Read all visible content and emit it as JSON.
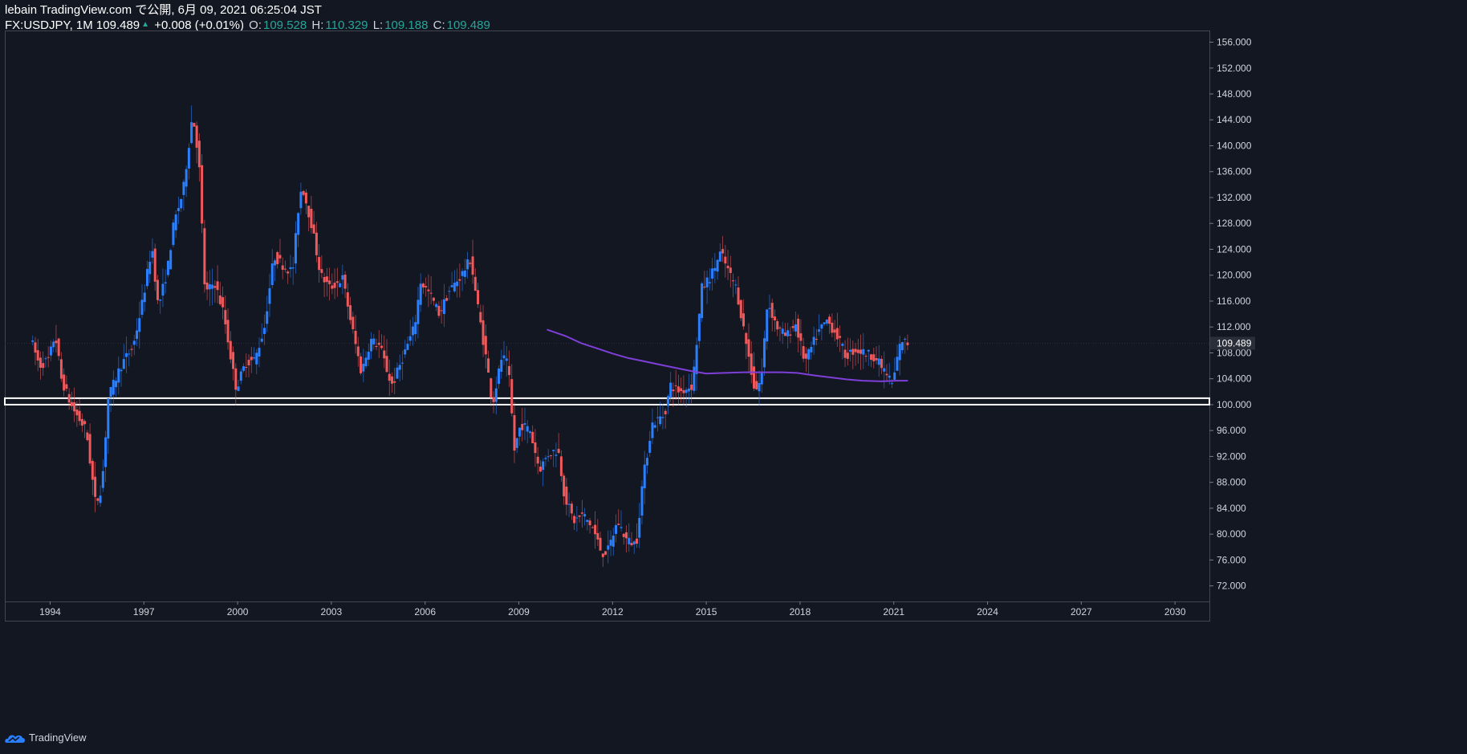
{
  "header": {
    "publish_line": "lebain TradingView.com で公開, 6月 09, 2021 06:25:04 JST",
    "symbol": "FX:USDJPY, 1M 109.489",
    "change_arrow": "▲",
    "change": "+0.008 (+0.01%)",
    "open_label": "O:",
    "open": "109.528",
    "high_label": "H:",
    "high": "110.329",
    "low_label": "L:",
    "low": "109.188",
    "close_label": "C:",
    "close": "109.489"
  },
  "footer": {
    "brand": "TradingView"
  },
  "colors": {
    "background": "#131722",
    "up": "#2a7fff",
    "down": "#f0595c",
    "ma": "#7e3fd8",
    "level": "#ffffff",
    "grid": "#1c2030",
    "price_tag": "#2a2e39"
  },
  "chart_data": {
    "type": "candlestick",
    "y_axis_labels": [
      "156.000",
      "152.000",
      "148.000",
      "144.000",
      "140.000",
      "136.000",
      "132.000",
      "128.000",
      "124.000",
      "120.000",
      "116.000",
      "112.000",
      "108.000",
      "104.000",
      "100.000",
      "96.000",
      "92.000",
      "88.000",
      "84.000",
      "80.000",
      "76.000",
      "72.000"
    ],
    "ylim": [
      69.6,
      157.8
    ],
    "x_axis_labels": [
      "1994",
      "1997",
      "2000",
      "2003",
      "2006",
      "2009",
      "2012",
      "2015",
      "2018",
      "2021",
      "2024",
      "2027",
      "2030"
    ],
    "xlim": [
      1992.55,
      2031.1
    ],
    "last_price": "109.489",
    "last_price_value": 109.489,
    "support_band": [
      100.0,
      101.0
    ],
    "series_path": [
      [
        1993.4,
        110.5
      ],
      [
        1993.7,
        106
      ],
      [
        1994.0,
        107
      ],
      [
        1994.2,
        111
      ],
      [
        1994.4,
        104
      ],
      [
        1994.7,
        100
      ],
      [
        1995.0,
        97.5
      ],
      [
        1995.2,
        96
      ],
      [
        1995.3,
        92
      ],
      [
        1995.5,
        84.5
      ],
      [
        1995.7,
        87.5
      ],
      [
        1995.9,
        101
      ],
      [
        1996.3,
        106
      ],
      [
        1996.7,
        109
      ],
      [
        1997.0,
        116
      ],
      [
        1997.3,
        124.5
      ],
      [
        1997.5,
        115
      ],
      [
        1997.8,
        121
      ],
      [
        1998.0,
        128
      ],
      [
        1998.3,
        133
      ],
      [
        1998.6,
        145
      ],
      [
        1998.8,
        138
      ],
      [
        1999.0,
        117
      ],
      [
        1999.3,
        119
      ],
      [
        1999.6,
        114
      ],
      [
        1999.9,
        105
      ],
      [
        2000.0,
        102.5
      ],
      [
        2000.3,
        106.5
      ],
      [
        2000.6,
        107
      ],
      [
        2000.9,
        112
      ],
      [
        2001.2,
        123
      ],
      [
        2001.5,
        121.5
      ],
      [
        2001.8,
        120.5
      ],
      [
        2002.0,
        131
      ],
      [
        2002.1,
        134
      ],
      [
        2002.4,
        128
      ],
      [
        2002.7,
        120
      ],
      [
        2003.0,
        118
      ],
      [
        2003.4,
        119.5
      ],
      [
        2003.7,
        112
      ],
      [
        2004.0,
        105
      ],
      [
        2004.3,
        110
      ],
      [
        2004.6,
        109
      ],
      [
        2004.9,
        104
      ],
      [
        2005.0,
        103
      ],
      [
        2005.3,
        107
      ],
      [
        2005.7,
        112
      ],
      [
        2005.9,
        119
      ],
      [
        2006.2,
        117
      ],
      [
        2006.5,
        114
      ],
      [
        2006.8,
        117.5
      ],
      [
        2007.2,
        120
      ],
      [
        2007.5,
        122.5
      ],
      [
        2007.7,
        116
      ],
      [
        2008.0,
        107
      ],
      [
        2008.2,
        100
      ],
      [
        2008.5,
        107.5
      ],
      [
        2008.7,
        106
      ],
      [
        2008.9,
        93
      ],
      [
        2009.1,
        97
      ],
      [
        2009.4,
        96
      ],
      [
        2009.7,
        90
      ],
      [
        2010.0,
        92.5
      ],
      [
        2010.3,
        93
      ],
      [
        2010.5,
        86
      ],
      [
        2010.8,
        82
      ],
      [
        2011.1,
        83
      ],
      [
        2011.4,
        81
      ],
      [
        2011.7,
        77
      ],
      [
        2011.9,
        77.5
      ],
      [
        2012.2,
        82
      ],
      [
        2012.5,
        79
      ],
      [
        2012.8,
        78.5
      ],
      [
        2013.0,
        88
      ],
      [
        2013.3,
        97
      ],
      [
        2013.7,
        98.5
      ],
      [
        2013.9,
        103
      ],
      [
        2014.2,
        102
      ],
      [
        2014.6,
        103
      ],
      [
        2014.9,
        118
      ],
      [
        2015.2,
        120
      ],
      [
        2015.5,
        123.5
      ],
      [
        2015.8,
        120
      ],
      [
        2016.0,
        118
      ],
      [
        2016.3,
        110
      ],
      [
        2016.6,
        102
      ],
      [
        2016.8,
        104
      ],
      [
        2017.0,
        116
      ],
      [
        2017.3,
        112
      ],
      [
        2017.6,
        110.5
      ],
      [
        2017.9,
        112.5
      ],
      [
        2018.2,
        106.5
      ],
      [
        2018.6,
        111
      ],
      [
        2018.9,
        113
      ],
      [
        2019.2,
        111
      ],
      [
        2019.5,
        107.5
      ],
      [
        2019.8,
        108.5
      ],
      [
        2020.1,
        108
      ],
      [
        2020.4,
        107.5
      ],
      [
        2020.7,
        105.5
      ],
      [
        2020.9,
        104
      ],
      [
        2021.0,
        103
      ],
      [
        2021.2,
        108.5
      ],
      [
        2021.3,
        110
      ],
      [
        2021.45,
        109.5
      ]
    ],
    "moving_average": [
      [
        2009.9,
        111.6
      ],
      [
        2010.5,
        110.6
      ],
      [
        2011.0,
        109.5
      ],
      [
        2011.5,
        108.7
      ],
      [
        2012.0,
        107.9
      ],
      [
        2012.5,
        107.2
      ],
      [
        2013.0,
        106.7
      ],
      [
        2013.5,
        106.2
      ],
      [
        2014.0,
        105.7
      ],
      [
        2014.5,
        105.2
      ],
      [
        2015.0,
        104.8
      ],
      [
        2015.6,
        104.9
      ],
      [
        2016.2,
        105.0
      ],
      [
        2016.8,
        105.0
      ],
      [
        2017.4,
        105.0
      ],
      [
        2017.9,
        104.9
      ],
      [
        2018.5,
        104.5
      ],
      [
        2019.0,
        104.2
      ],
      [
        2019.5,
        103.9
      ],
      [
        2020.0,
        103.7
      ],
      [
        2020.6,
        103.6
      ],
      [
        2021.1,
        103.7
      ],
      [
        2021.45,
        103.7
      ]
    ]
  }
}
